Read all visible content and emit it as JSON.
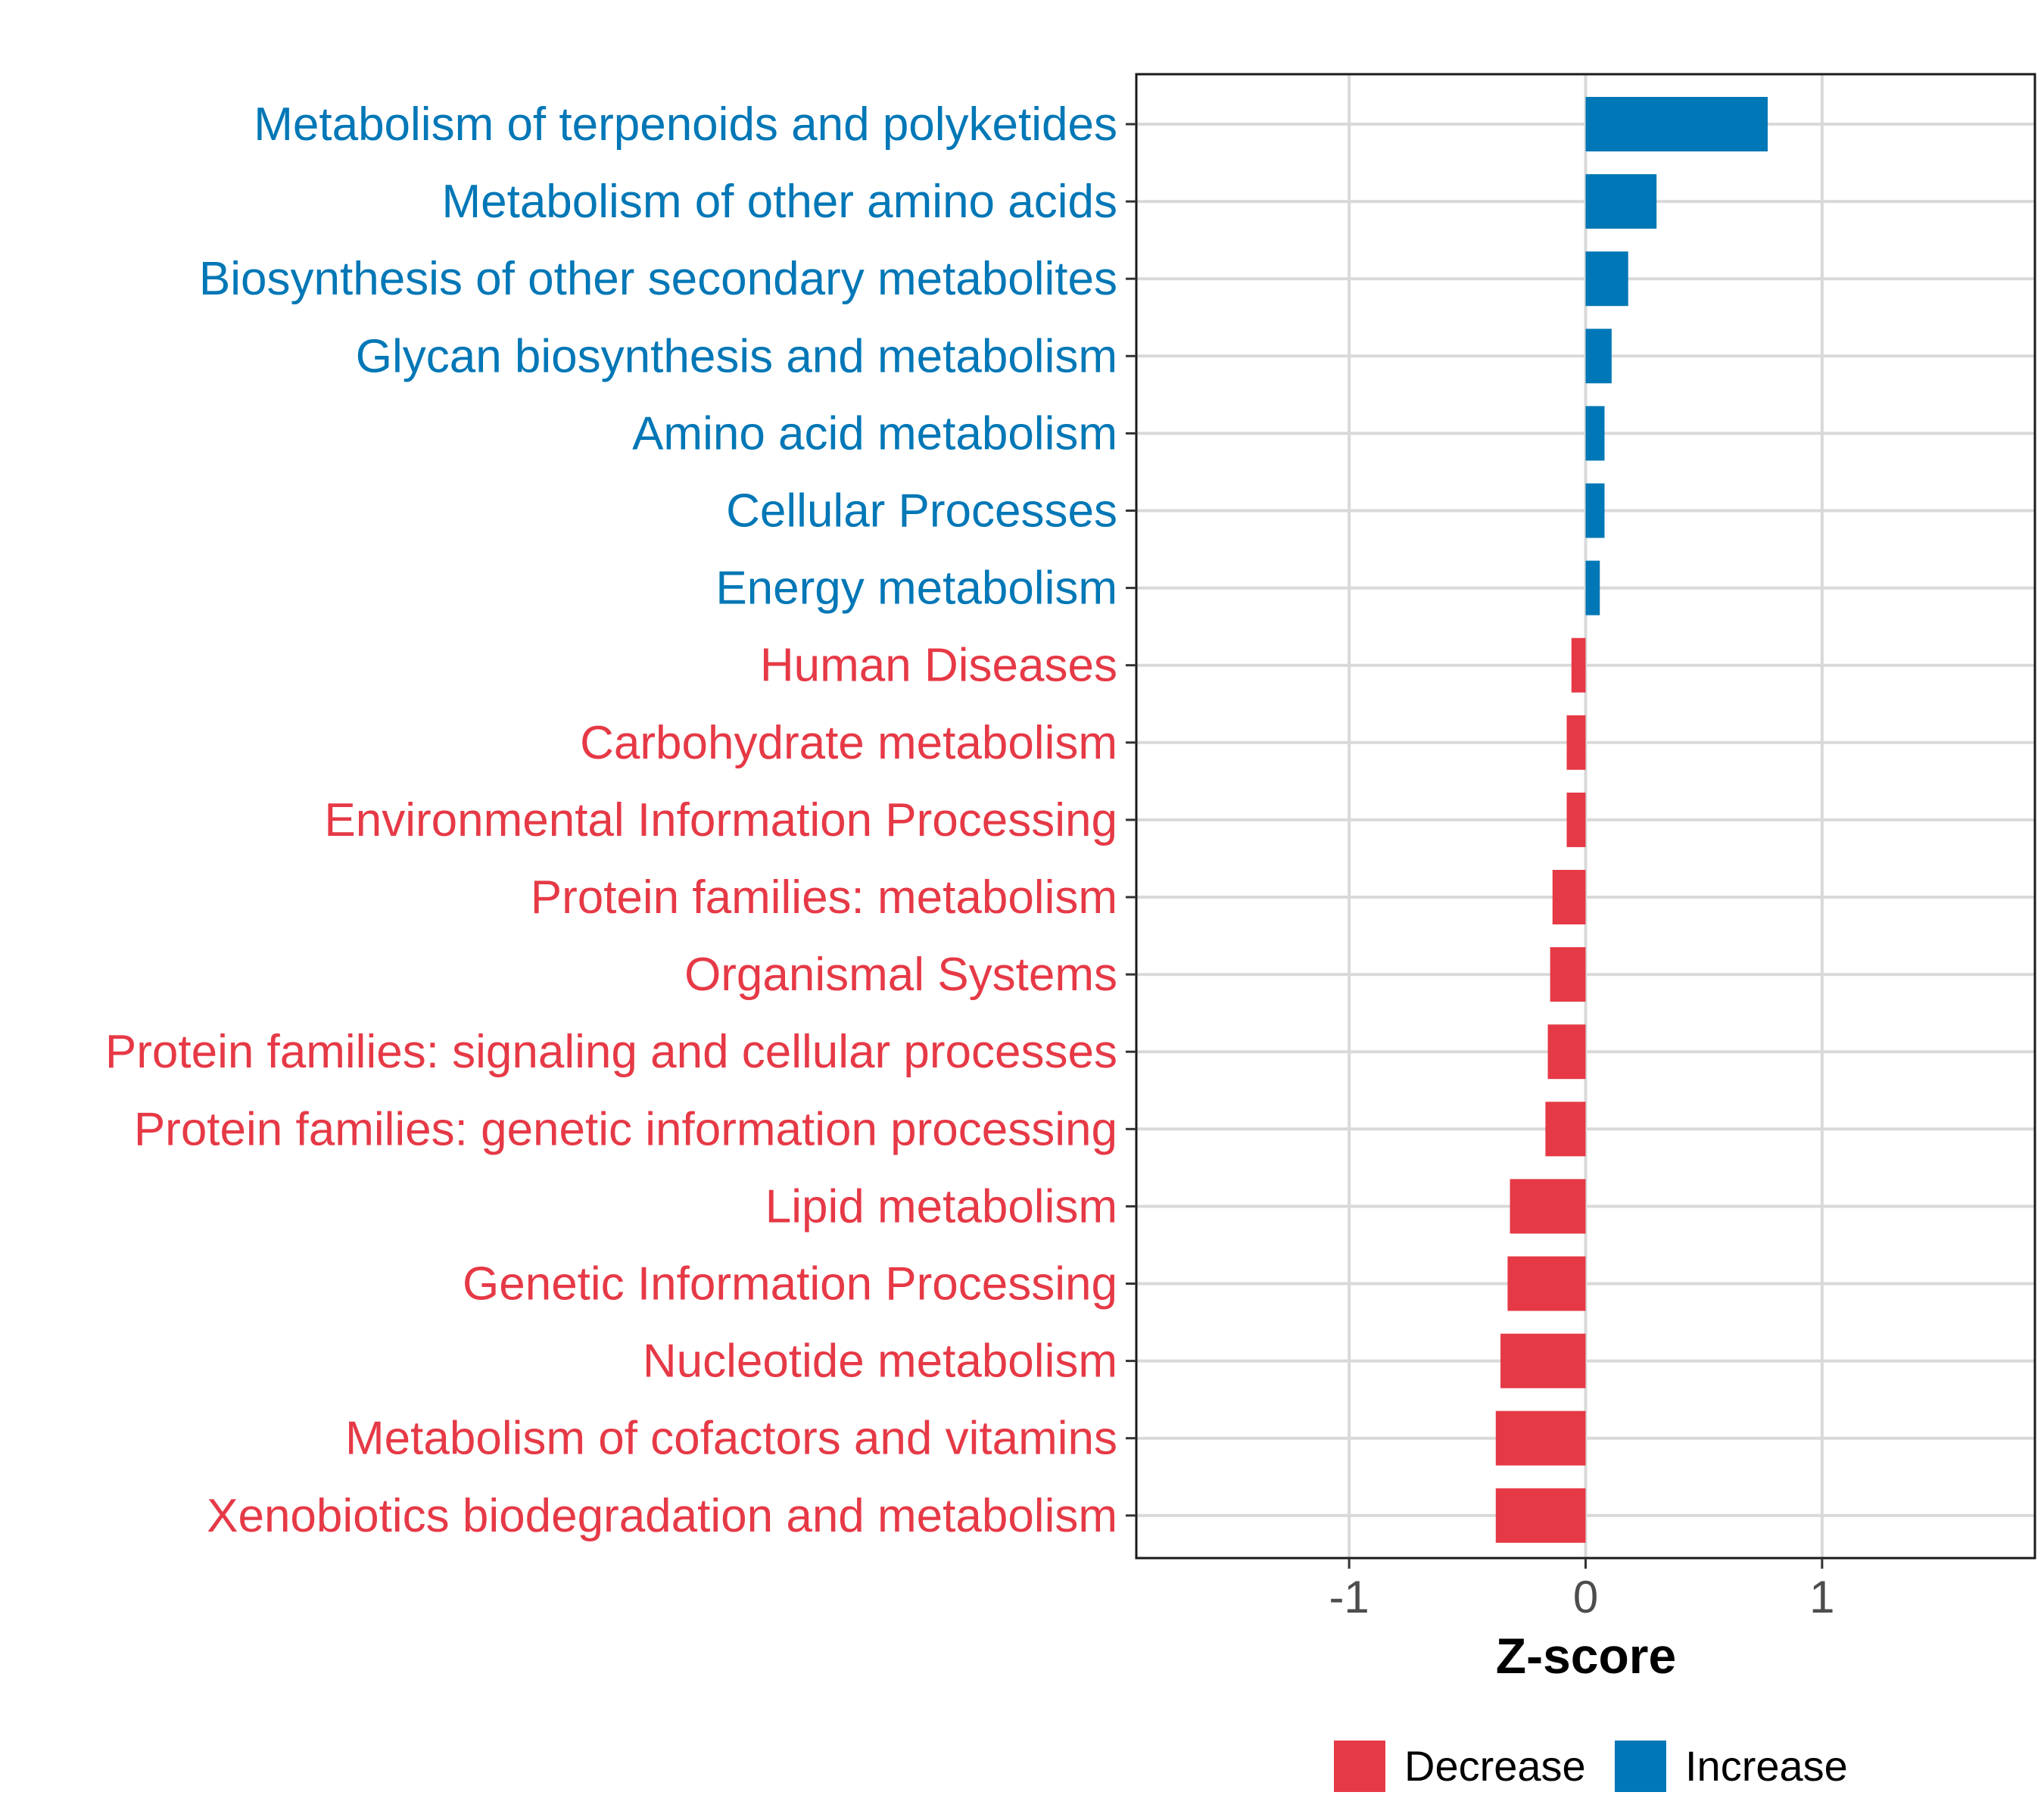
{
  "chart_data": {
    "type": "bar",
    "orientation": "horizontal",
    "title": "",
    "xlabel": "Z-score",
    "ylabel": "",
    "xlim": [
      -1.9,
      1.9
    ],
    "xticks": [
      -1,
      0,
      1
    ],
    "xtick_labels": [
      "-1",
      "0",
      "1"
    ],
    "grid": true,
    "legend_position": "bottom",
    "colors": {
      "Increase": "#0077b6",
      "Decrease": "#e63946"
    },
    "legend": [
      {
        "name": "Decrease",
        "color": "#e63946"
      },
      {
        "name": "Increase",
        "color": "#0077b6"
      }
    ],
    "categories": [
      "Metabolism of terpenoids and polyketides",
      "Metabolism of other amino acids",
      "Biosynthesis of other secondary metabolites",
      "Glycan biosynthesis and metabolism",
      "Amino acid metabolism",
      "Cellular Processes",
      "Energy metabolism",
      "Human Diseases",
      "Carbohydrate metabolism",
      "Environmental Information Processing",
      "Protein families: metabolism",
      "Organismal Systems",
      "Protein families: signaling and cellular processes",
      "Protein families: genetic information processing",
      "Lipid metabolism",
      "Genetic Information Processing",
      "Nucleotide metabolism",
      "Metabolism of cofactors and vitamins",
      "Xenobiotics biodegradation and metabolism"
    ],
    "values": [
      0.77,
      0.3,
      0.18,
      0.11,
      0.08,
      0.08,
      0.06,
      -0.06,
      -0.08,
      -0.08,
      -0.14,
      -0.15,
      -0.16,
      -0.17,
      -0.32,
      -0.33,
      -0.36,
      -0.38,
      -0.38
    ],
    "groups": [
      "Increase",
      "Increase",
      "Increase",
      "Increase",
      "Increase",
      "Increase",
      "Increase",
      "Decrease",
      "Decrease",
      "Decrease",
      "Decrease",
      "Decrease",
      "Decrease",
      "Decrease",
      "Decrease",
      "Decrease",
      "Decrease",
      "Decrease",
      "Decrease"
    ]
  }
}
